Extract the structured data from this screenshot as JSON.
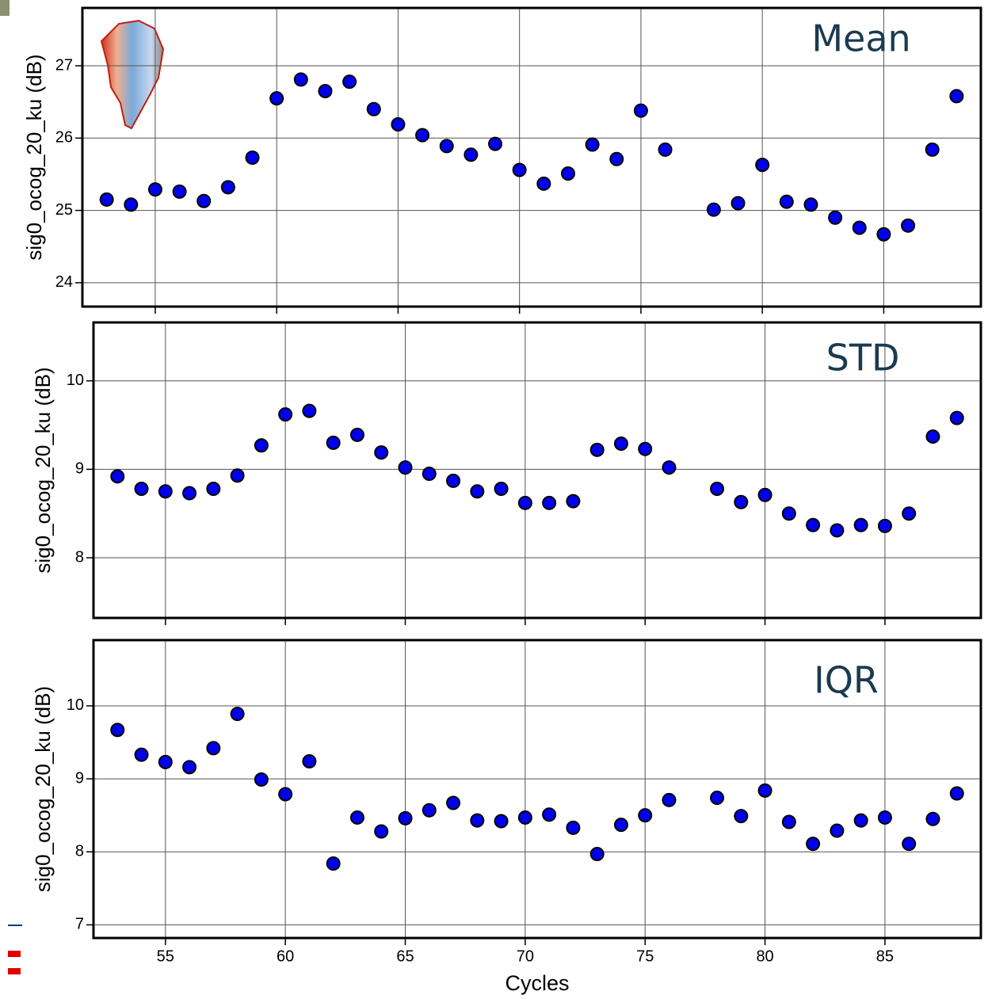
{
  "chart_data": [
    {
      "type": "scatter",
      "annotation": "Mean",
      "ylabel": "sig0_ocog_20_ku (dB)",
      "color": "#0000ee",
      "grid": true,
      "show_xtick_labels": false,
      "x": [
        53,
        54,
        55,
        56,
        57,
        58,
        59,
        60,
        61,
        62,
        63,
        64,
        65,
        66,
        67,
        68,
        69,
        70,
        71,
        72,
        73,
        74,
        75,
        76,
        78,
        79,
        80,
        81,
        82,
        83,
        84,
        85,
        86,
        87,
        88
      ],
      "values": [
        25.15,
        25.08,
        25.29,
        25.26,
        25.13,
        25.32,
        25.73,
        26.55,
        26.81,
        26.65,
        26.78,
        26.4,
        26.19,
        26.04,
        25.89,
        25.77,
        25.92,
        25.56,
        25.37,
        25.51,
        25.91,
        25.71,
        26.38,
        25.84,
        25.01,
        25.1,
        25.63,
        25.12,
        25.08,
        24.9,
        24.76,
        24.67,
        24.79,
        25.84,
        26.58
      ],
      "xlim": [
        52,
        89
      ],
      "xticks": [
        55,
        60,
        65,
        70,
        75,
        80,
        85
      ],
      "ylim": [
        23.67,
        27.8
      ],
      "yticks": [
        24,
        25,
        26,
        27
      ]
    },
    {
      "type": "scatter",
      "annotation": "STD",
      "ylabel": "sig0_ocog_20_ku (dB)",
      "color": "#0000ee",
      "grid": true,
      "show_xtick_labels": false,
      "x": [
        53,
        54,
        55,
        56,
        57,
        58,
        59,
        60,
        61,
        62,
        63,
        64,
        65,
        66,
        67,
        68,
        69,
        70,
        71,
        72,
        73,
        74,
        75,
        76,
        78,
        79,
        80,
        81,
        82,
        83,
        84,
        85,
        86,
        87,
        88
      ],
      "values": [
        8.92,
        8.78,
        8.75,
        8.73,
        8.78,
        8.93,
        9.27,
        9.62,
        9.66,
        9.3,
        9.39,
        9.19,
        9.02,
        8.95,
        8.87,
        8.75,
        8.78,
        8.62,
        8.62,
        8.64,
        9.22,
        9.29,
        9.23,
        9.02,
        8.78,
        8.63,
        8.71,
        8.5,
        8.37,
        8.31,
        8.37,
        8.36,
        8.5,
        9.37,
        9.58
      ],
      "xlim": [
        52,
        89
      ],
      "xticks": [
        55,
        60,
        65,
        70,
        75,
        80,
        85
      ],
      "ylim": [
        7.32,
        10.66
      ],
      "yticks": [
        8,
        9,
        10
      ]
    },
    {
      "type": "scatter",
      "annotation": "IQR",
      "ylabel": "sig0_ocog_20_ku (dB)",
      "xlabel": "Cycles",
      "color": "#0000ee",
      "grid": true,
      "show_xtick_labels": true,
      "x": [
        53,
        54,
        55,
        56,
        57,
        58,
        59,
        60,
        61,
        62,
        63,
        64,
        65,
        66,
        67,
        68,
        69,
        70,
        71,
        72,
        73,
        74,
        75,
        76,
        78,
        79,
        80,
        81,
        82,
        83,
        84,
        85,
        86,
        87,
        88
      ],
      "values": [
        9.67,
        9.33,
        9.23,
        9.16,
        9.42,
        9.89,
        8.99,
        8.79,
        9.24,
        7.84,
        8.47,
        8.28,
        8.46,
        8.57,
        8.67,
        8.43,
        8.42,
        8.47,
        8.51,
        8.33,
        7.97,
        8.37,
        8.5,
        8.71,
        8.74,
        8.49,
        8.84,
        8.41,
        8.11,
        8.29,
        8.43,
        8.47,
        8.11,
        8.45,
        8.8
      ],
      "xlim": [
        52,
        89
      ],
      "xticks": [
        55,
        60,
        65,
        70,
        75,
        80,
        85
      ],
      "ylim": [
        6.82,
        10.9
      ],
      "yticks": [
        7,
        8,
        9,
        10
      ]
    }
  ]
}
